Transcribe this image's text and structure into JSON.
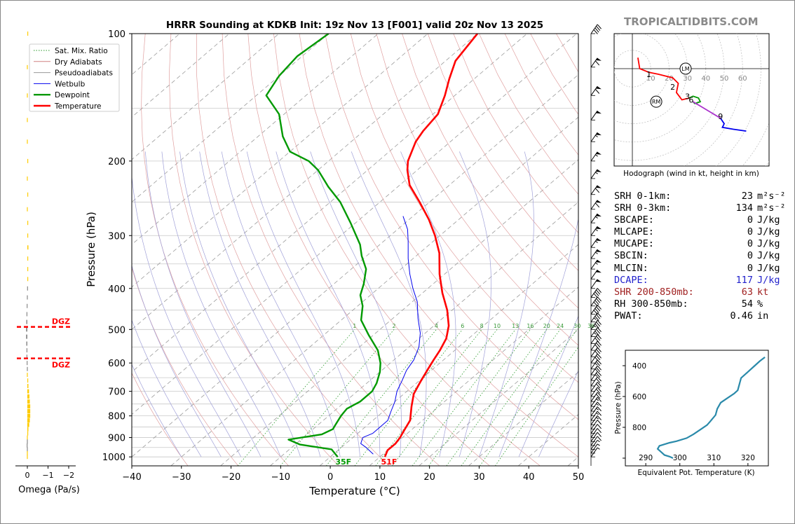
{
  "chart_data": [
    {
      "type": "line",
      "title": "HRRR Sounding at KDKB Init: 19z Nov 13 [F001] valid 20z Nov 13 2025",
      "xlabel": "Temperature (°C)",
      "ylabel": "Pressure (hPa)",
      "xlim": [
        -40,
        50
      ],
      "ylim": [
        1050,
        100
      ],
      "yscale": "log",
      "skew": true,
      "x_ticks": [
        "−40",
        "−30",
        "−20",
        "−10",
        "0",
        "10",
        "20",
        "30",
        "40",
        "50"
      ],
      "y_ticks": [
        "100",
        "200",
        "300",
        "400",
        "500",
        "600",
        "700",
        "800",
        "900",
        "1000"
      ],
      "mixing_ratio_labels": [
        "1",
        "2",
        "4",
        "6",
        "8",
        "10",
        "13",
        "16",
        "20",
        "24",
        "30",
        "36"
      ],
      "legend": {
        "placement": "top-left",
        "entries": [
          {
            "label": "Sat. Mix. Ratio",
            "color": "#2a9a2a",
            "style": "dotted"
          },
          {
            "label": "Dry Adiabats",
            "color": "#d08080",
            "style": "solid"
          },
          {
            "label": "Pseudoadiabats",
            "color": "#999999",
            "style": "solid"
          },
          {
            "label": "Wetbulb",
            "color": "#0000ee",
            "style": "solid"
          },
          {
            "label": "Dewpoint",
            "color": "#009900",
            "style": "bold"
          },
          {
            "label": "Temperature",
            "color": "#ff0000",
            "style": "bold"
          }
        ]
      },
      "series": [
        {
          "name": "Temperature",
          "color": "#ff0000",
          "points": [
            [
              11,
              1000
            ],
            [
              10,
              965
            ],
            [
              10,
              930
            ],
            [
              9.5,
              900
            ],
            [
              8.5,
              860
            ],
            [
              7.5,
              820
            ],
            [
              4.5,
              760
            ],
            [
              2,
              710
            ],
            [
              0.5,
              665
            ],
            [
              -1,
              620
            ],
            [
              -2,
              590
            ],
            [
              -3,
              560
            ],
            [
              -4.5,
              525
            ],
            [
              -7,
              490
            ],
            [
              -11,
              450
            ],
            [
              -16,
              410
            ],
            [
              -21,
              370
            ],
            [
              -26,
              330
            ],
            [
              -31,
              300
            ],
            [
              -36,
              275
            ],
            [
              -42,
              250
            ],
            [
              -48,
              228
            ],
            [
              -52,
              210
            ],
            [
              -54,
              200
            ],
            [
              -57,
              180
            ],
            [
              -58,
              170
            ],
            [
              -59,
              155
            ],
            [
              -62,
              140
            ],
            [
              -65,
              128
            ],
            [
              -68,
              116
            ],
            [
              -70,
              100
            ]
          ]
        },
        {
          "name": "Wetbulb",
          "color": "#0000ee",
          "points": [
            [
              8,
              985
            ],
            [
              5,
              950
            ],
            [
              3,
              930
            ],
            [
              2,
              900
            ],
            [
              3,
              880
            ],
            [
              3,
              850
            ],
            [
              3,
              820
            ],
            [
              1.5,
              780
            ],
            [
              0,
              740
            ],
            [
              -2,
              700
            ],
            [
              -3.5,
              660
            ],
            [
              -5,
              625
            ],
            [
              -6,
              590
            ],
            [
              -8,
              550
            ],
            [
              -11,
              510
            ],
            [
              -15,
              470
            ],
            [
              -19,
              430
            ],
            [
              -23,
              400
            ],
            [
              -27,
              370
            ],
            [
              -31,
              340
            ],
            [
              -35,
              310
            ],
            [
              -38,
              290
            ],
            [
              -42,
              270
            ]
          ]
        },
        {
          "name": "Dewpoint",
          "color": "#009900",
          "points": [
            [
              1.5,
              1000
            ],
            [
              -1.5,
              960
            ],
            [
              -9,
              935
            ],
            [
              -12.5,
              910
            ],
            [
              -7,
              885
            ],
            [
              -6,
              860
            ],
            [
              -6.5,
              840
            ],
            [
              -7.5,
              800
            ],
            [
              -8,
              770
            ],
            [
              -7,
              740
            ],
            [
              -7,
              700
            ],
            [
              -8,
              670
            ],
            [
              -10,
              630
            ],
            [
              -12,
              600
            ],
            [
              -15.5,
              560
            ],
            [
              -21,
              515
            ],
            [
              -26,
              475
            ],
            [
              -29,
              440
            ],
            [
              -32,
              415
            ],
            [
              -34,
              390
            ],
            [
              -37,
              360
            ],
            [
              -41,
              335
            ],
            [
              -44,
              315
            ],
            [
              -51,
              280
            ],
            [
              -58,
              250
            ],
            [
              -64,
              230
            ],
            [
              -70,
              210
            ],
            [
              -74,
              200
            ],
            [
              -80,
              190
            ],
            [
              -85,
              175
            ],
            [
              -91,
              155
            ],
            [
              -98,
              140
            ],
            [
              -100,
              126
            ],
            [
              -101,
              113
            ],
            [
              -100,
              100
            ]
          ]
        }
      ],
      "annotations": [
        {
          "text": "35F",
          "color": "#009900",
          "x": 1.5,
          "p": 1000
        },
        {
          "text": "51F",
          "color": "#ff0000",
          "x": 11,
          "p": 1000
        }
      ]
    },
    {
      "type": "bar",
      "title": "",
      "xlabel": "Omega (Pa/s)",
      "ylabel": "",
      "xlim": [
        0,
        -2
      ],
      "ylim": [
        1050,
        100
      ],
      "x_ticks": [
        "0",
        "−1",
        "−2"
      ],
      "dgz_label": "DGZ",
      "dgz_pressures": [
        493,
        585
      ],
      "levels": [
        100,
        120,
        140,
        160,
        180,
        200,
        220,
        240,
        260,
        280,
        300,
        320,
        340,
        360,
        380,
        400,
        420,
        440,
        460,
        480,
        500,
        520,
        540,
        560,
        580,
        600,
        620,
        640,
        660,
        680,
        700,
        720,
        740,
        760,
        780,
        800,
        820,
        840,
        860,
        880,
        900,
        920,
        940,
        960,
        980,
        1000
      ],
      "values": [
        -0.03,
        0,
        0,
        0,
        0,
        -0.02,
        0,
        -0.02,
        0,
        -0.03,
        -0.04,
        -0.05,
        -0.04,
        -0.03,
        -0.02,
        0.01,
        0.02,
        0.03,
        0.04,
        0.05,
        0.06,
        0.06,
        0.05,
        0.04,
        0.04,
        0.03,
        0.02,
        0,
        -0.02,
        -0.05,
        -0.08,
        -0.1,
        -0.12,
        -0.14,
        -0.14,
        -0.14,
        -0.12,
        -0.09,
        -0.05,
        -0.03,
        0,
        0.02,
        0.03,
        0.02,
        0,
        0
      ]
    },
    {
      "type": "line",
      "title": "Hodograph (wind in kt, height in km)",
      "rings": [
        "10",
        "20",
        "30",
        "40",
        "50",
        "60"
      ],
      "height_labels": [
        "1",
        "2",
        "3",
        "6",
        "9"
      ],
      "markers": [
        "LM",
        "RM"
      ],
      "segments": [
        {
          "color": "#ff0000",
          "points": [
            [
              3,
              6
            ],
            [
              4,
              0
            ],
            [
              9,
              -2
            ],
            [
              14,
              -3
            ],
            [
              22,
              -5
            ],
            [
              25,
              -8
            ],
            [
              24,
              -13
            ],
            [
              27,
              -17
            ],
            [
              31,
              -16
            ]
          ]
        },
        {
          "color": "#009900",
          "points": [
            [
              31,
              -16
            ],
            [
              33,
              -15
            ],
            [
              36,
              -16
            ],
            [
              37,
              -18
            ],
            [
              34,
              -19
            ],
            [
              33,
              -18
            ]
          ]
        },
        {
          "color": "#aa33cc",
          "points": [
            [
              33,
              -18
            ],
            [
              38,
              -21
            ],
            [
              43,
              -24
            ],
            [
              48,
              -27
            ]
          ]
        },
        {
          "color": "#0000ee",
          "points": [
            [
              48,
              -27
            ],
            [
              50,
              -30
            ],
            [
              49,
              -32
            ],
            [
              55,
              -33
            ],
            [
              62,
              -34
            ]
          ]
        }
      ],
      "marker_points": [
        {
          "label": "LM",
          "u": 29,
          "v": 0
        },
        {
          "label": "RM",
          "u": 13,
          "v": -18
        }
      ],
      "label_points": [
        {
          "label": "1",
          "u": 9,
          "v": -3
        },
        {
          "label": "2",
          "u": 22,
          "v": -10
        },
        {
          "label": "3",
          "u": 30,
          "v": -15
        },
        {
          "label": "6",
          "u": 32,
          "v": -17
        },
        {
          "label": "9",
          "u": 48,
          "v": -26
        }
      ]
    },
    {
      "type": "line",
      "title": "",
      "xlabel": "Equivalent Pot. Temperature (K)",
      "ylabel": "Pressure (hPa)",
      "xlim": [
        284,
        326
      ],
      "ylim": [
        1050,
        300
      ],
      "x_ticks": [
        "290",
        "300",
        "310",
        "320"
      ],
      "y_ticks": [
        "400",
        "600",
        "800"
      ],
      "series": [
        {
          "name": "",
          "color": "#2a8aaa",
          "points": [
            [
              298,
              1000
            ],
            [
              297,
              990
            ],
            [
              295.5,
              980
            ],
            [
              294.5,
              960
            ],
            [
              293.5,
              940
            ],
            [
              294,
              920
            ],
            [
              297,
              900
            ],
            [
              299,
              890
            ],
            [
              302,
              870
            ],
            [
              304,
              845
            ],
            [
              306,
              815
            ],
            [
              308,
              785
            ],
            [
              309,
              760
            ],
            [
              310.5,
              720
            ],
            [
              311,
              680
            ],
            [
              312,
              640
            ],
            [
              314,
              610
            ],
            [
              316,
              580
            ],
            [
              317,
              560
            ],
            [
              317.5,
              520
            ],
            [
              318,
              480
            ],
            [
              320,
              440
            ],
            [
              322,
              400
            ],
            [
              323.5,
              370
            ],
            [
              325,
              345
            ]
          ]
        }
      ]
    }
  ],
  "brand": "TROPICALTIDBITS.COM",
  "stats": [
    {
      "label": "SRH 0-1km:",
      "value": "23",
      "unit": "m²s⁻²",
      "color": "#000000"
    },
    {
      "label": "SRH 0-3km:",
      "value": "134",
      "unit": "m²s⁻²",
      "color": "#000000"
    },
    {
      "label": "SBCAPE:",
      "value": "0",
      "unit": "J/kg",
      "color": "#000000"
    },
    {
      "label": "MLCAPE:",
      "value": "0",
      "unit": "J/kg",
      "color": "#000000"
    },
    {
      "label": "MUCAPE:",
      "value": "0",
      "unit": "J/kg",
      "color": "#000000"
    },
    {
      "label": "SBCIN:",
      "value": "0",
      "unit": "J/kg",
      "color": "#000000"
    },
    {
      "label": "MLCIN:",
      "value": "0",
      "unit": "J/kg",
      "color": "#000000"
    },
    {
      "label": "DCAPE:",
      "value": "117",
      "unit": "J/kg",
      "color": "#2222cc"
    },
    {
      "label": "SHR 200-850mb:",
      "value": "63",
      "unit": "kt",
      "color": "#a02020"
    },
    {
      "label": "RH 300-850mb:",
      "value": "54",
      "unit": "%",
      "color": "#000000"
    },
    {
      "label": "PWAT:",
      "value": "0.46",
      "unit": "in",
      "color": "#000000"
    }
  ],
  "wind_barbs": {
    "levels": [
      100,
      120,
      140,
      160,
      180,
      200,
      220,
      240,
      260,
      280,
      300,
      320,
      340,
      360,
      380,
      400,
      420,
      440,
      460,
      480,
      500,
      520,
      540,
      560,
      580,
      600,
      620,
      640,
      660,
      680,
      700,
      720,
      740,
      760,
      780,
      800,
      820,
      840,
      860,
      880,
      900,
      920,
      940,
      960,
      980,
      1000
    ],
    "speeds": [
      40,
      60,
      60,
      50,
      55,
      55,
      55,
      60,
      60,
      55,
      55,
      55,
      55,
      55,
      50,
      50,
      40,
      40,
      40,
      35,
      35,
      35,
      30,
      30,
      30,
      30,
      25,
      25,
      25,
      20,
      20,
      20,
      20,
      15,
      15,
      15,
      15,
      15,
      10,
      10,
      10,
      10,
      10,
      5,
      5,
      5
    ]
  }
}
